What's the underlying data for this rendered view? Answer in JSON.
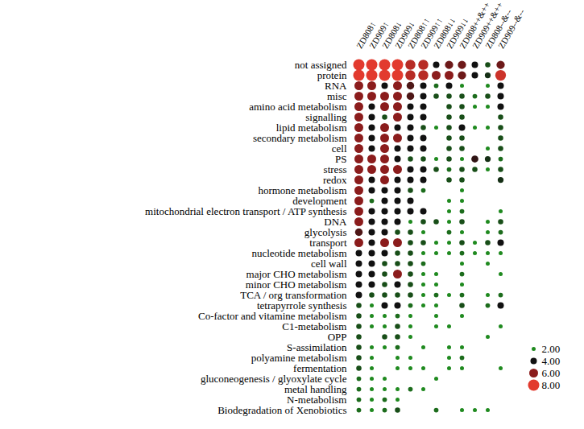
{
  "chart_data": {
    "type": "dot_matrix",
    "tick_labels": true,
    "columns": [
      "ZD808↑",
      "ZD909↑",
      "ZD808↓",
      "ZD909↓",
      "ZD808↑↑",
      "ZD909↑↑",
      "ZD808↓↓",
      "ZD909↓↓",
      "ZD808++&++",
      "ZD909++&++",
      "ZD808--&--",
      "ZD909--&--"
    ],
    "categories": [
      "not assigned",
      "protein",
      "RNA",
      "misc",
      "amino acid metabolism",
      "signalling",
      "lipid metabolism",
      "secondary metabolism",
      "cell",
      "PS",
      "stress",
      "redox",
      "hormone metabolism",
      "development",
      "mitochondrial electron transport / ATP synthesis",
      "DNA",
      "glycolysis",
      "transport",
      "nucleotide metabolism",
      "cell wall",
      "major CHO metabolism",
      "minor CHO metabolism",
      "TCA / org transformation",
      "tetrapyrrole synthesis",
      "Co-factor and vitamine metabolism",
      "C1-metabolism",
      "OPP",
      "S-assimilation",
      "polyamine metabolism",
      "fermentation",
      "gluconeogenesis / glyoxylate cycle",
      "metal handling",
      "N-metabolism",
      "Biodegradation of Xenobiotics"
    ],
    "cells": [
      [
        8,
        8,
        8,
        8,
        7,
        7,
        4,
        5.5,
        5.5,
        4,
        3,
        5.5
      ],
      [
        8,
        8,
        8,
        8,
        7,
        7,
        6,
        6,
        5.5,
        4,
        3.5,
        7.5
      ],
      [
        6,
        6,
        4,
        6,
        5,
        4,
        2.5,
        4,
        2,
        null,
        2,
        4
      ],
      [
        6,
        6,
        6,
        6,
        5,
        4,
        3,
        3,
        3,
        2.5,
        3,
        4
      ],
      [
        6,
        4,
        6,
        6,
        4,
        4,
        null,
        3,
        3,
        2,
        2,
        4
      ],
      [
        6,
        4,
        3,
        6,
        4,
        4,
        null,
        3,
        3,
        null,
        null,
        3
      ],
      [
        6,
        4,
        6,
        4,
        4,
        3,
        2,
        3,
        4,
        2,
        2,
        3
      ],
      [
        6,
        4,
        6,
        6,
        4,
        4,
        null,
        3,
        3,
        null,
        null,
        3
      ],
      [
        6,
        4,
        6,
        4,
        4,
        4,
        null,
        3,
        3,
        null,
        2,
        3
      ],
      [
        6,
        6,
        6,
        4,
        3,
        3,
        2,
        3,
        2,
        4.5,
        3.5,
        2.5
      ],
      [
        6,
        6,
        6,
        6,
        4,
        4,
        3,
        2.5,
        3,
        3,
        2,
        3
      ],
      [
        6,
        4,
        6,
        4,
        4,
        4,
        null,
        3,
        3,
        null,
        null,
        3.5
      ],
      [
        6,
        4,
        4,
        4,
        3,
        2.5,
        null,
        null,
        2,
        null,
        null,
        null
      ],
      [
        6,
        2.5,
        4,
        4,
        4,
        null,
        null,
        2,
        2,
        null,
        null,
        null
      ],
      [
        6,
        4,
        4,
        4,
        4,
        4,
        null,
        2,
        2.5,
        null,
        null,
        2
      ],
      [
        6,
        4,
        4,
        4,
        2,
        3,
        3,
        2,
        3,
        null,
        2,
        3
      ],
      [
        5,
        4,
        4,
        3,
        3,
        2,
        null,
        2.5,
        2,
        null,
        2,
        2.5
      ],
      [
        6,
        4,
        6,
        6,
        3,
        3,
        2,
        2,
        3,
        2,
        3,
        4
      ],
      [
        4,
        4,
        4,
        3,
        3,
        2,
        2,
        2,
        2.5,
        2,
        2,
        2
      ],
      [
        4,
        4,
        3,
        3,
        3,
        2.5,
        null,
        null,
        2,
        null,
        2,
        null
      ],
      [
        4,
        4,
        3,
        6,
        3,
        2,
        2,
        null,
        2.5,
        null,
        null,
        2
      ],
      [
        4,
        4,
        3,
        4,
        3,
        2,
        2,
        null,
        2,
        null,
        null,
        null
      ],
      [
        4,
        3,
        3,
        3,
        3,
        2,
        2.5,
        2,
        2.5,
        null,
        2,
        2.5
      ],
      [
        3,
        2,
        4,
        4,
        2.5,
        2,
        2,
        null,
        3,
        null,
        2.5,
        4
      ],
      [
        3,
        2,
        2,
        2.5,
        2,
        null,
        2,
        null,
        2,
        null,
        null,
        null
      ],
      [
        3,
        2,
        2,
        3,
        2,
        null,
        2,
        2,
        null,
        null,
        null,
        2
      ],
      [
        3,
        null,
        3,
        3,
        2,
        null,
        null,
        null,
        null,
        null,
        2,
        null
      ],
      [
        3,
        2,
        2,
        2.5,
        null,
        2,
        null,
        2,
        2,
        null,
        null,
        null
      ],
      [
        3,
        2,
        null,
        2,
        2,
        null,
        null,
        2,
        2.5,
        null,
        null,
        null
      ],
      [
        3,
        2,
        null,
        2,
        2,
        2,
        null,
        2,
        2,
        null,
        null,
        2
      ],
      [
        2.5,
        2,
        2,
        null,
        null,
        null,
        2,
        null,
        null,
        null,
        null,
        null
      ],
      [
        2.5,
        2,
        2,
        2,
        2.5,
        2,
        null,
        null,
        null,
        null,
        null,
        null
      ],
      [
        2.5,
        2,
        2.5,
        2,
        null,
        null,
        null,
        null,
        null,
        null,
        null,
        null
      ],
      [
        2.5,
        2,
        2.5,
        3,
        null,
        null,
        2.5,
        null,
        2,
        2,
        2,
        null
      ]
    ],
    "legend_ticks": [
      {
        "value": 2,
        "label": "2.00"
      },
      {
        "value": 4,
        "label": "4.00"
      },
      {
        "value": 6,
        "label": "6.00"
      },
      {
        "value": 8,
        "label": "8.00"
      }
    ],
    "legend_colors": [
      "#1f8a1f",
      "#111111",
      "#8b1c1c",
      "#e23a2e"
    ]
  }
}
